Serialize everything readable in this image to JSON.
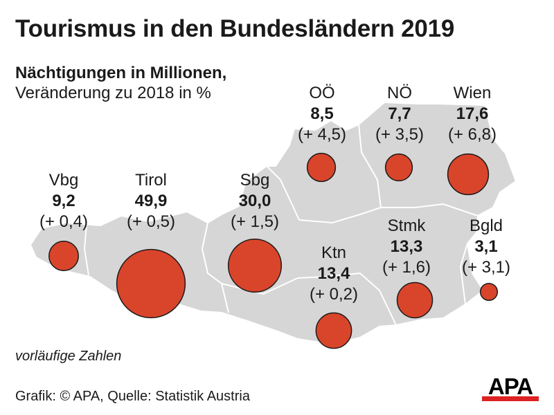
{
  "title": "Tourismus in den Bundesländern 2019",
  "subtitle": "Nächtigungen in Millionen,",
  "subtitle2": "Veränderung zu 2018 in %",
  "note": "vorläufige Zahlen",
  "source": "Grafik: © APA, Quelle: Statistik Austria",
  "logo_text": "APA",
  "colors": {
    "bubble": "#d9452b",
    "map": "#d6d6d6",
    "map_border": "#ffffff",
    "logo_bar": "#dd2222"
  },
  "chart_data": {
    "type": "bubble-map",
    "unit": "Nächtigungen in Millionen",
    "regions": [
      {
        "name": "Vbg",
        "value": "9,2",
        "change": "(+ 0,4)",
        "nights": 9.2,
        "change_pct": 0.4
      },
      {
        "name": "Tirol",
        "value": "49,9",
        "change": "(+ 0,5)",
        "nights": 49.9,
        "change_pct": 0.5
      },
      {
        "name": "Sbg",
        "value": "30,0",
        "change": "(+ 1,5)",
        "nights": 30.0,
        "change_pct": 1.5
      },
      {
        "name": "OÖ",
        "value": "8,5",
        "change": "(+ 4,5)",
        "nights": 8.5,
        "change_pct": 4.5
      },
      {
        "name": "NÖ",
        "value": "7,7",
        "change": "(+ 3,5)",
        "nights": 7.7,
        "change_pct": 3.5
      },
      {
        "name": "Wien",
        "value": "17,6",
        "change": "(+ 6,8)",
        "nights": 17.6,
        "change_pct": 6.8
      },
      {
        "name": "Ktn",
        "value": "13,4",
        "change": "(+ 0,2)",
        "nights": 13.4,
        "change_pct": 0.2
      },
      {
        "name": "Stmk",
        "value": "13,3",
        "change": "(+ 1,6)",
        "nights": 13.3,
        "change_pct": 1.6
      },
      {
        "name": "Bgld",
        "value": "3,1",
        "change": "(+ 3,1)",
        "nights": 3.1,
        "change_pct": 3.1
      }
    ]
  }
}
